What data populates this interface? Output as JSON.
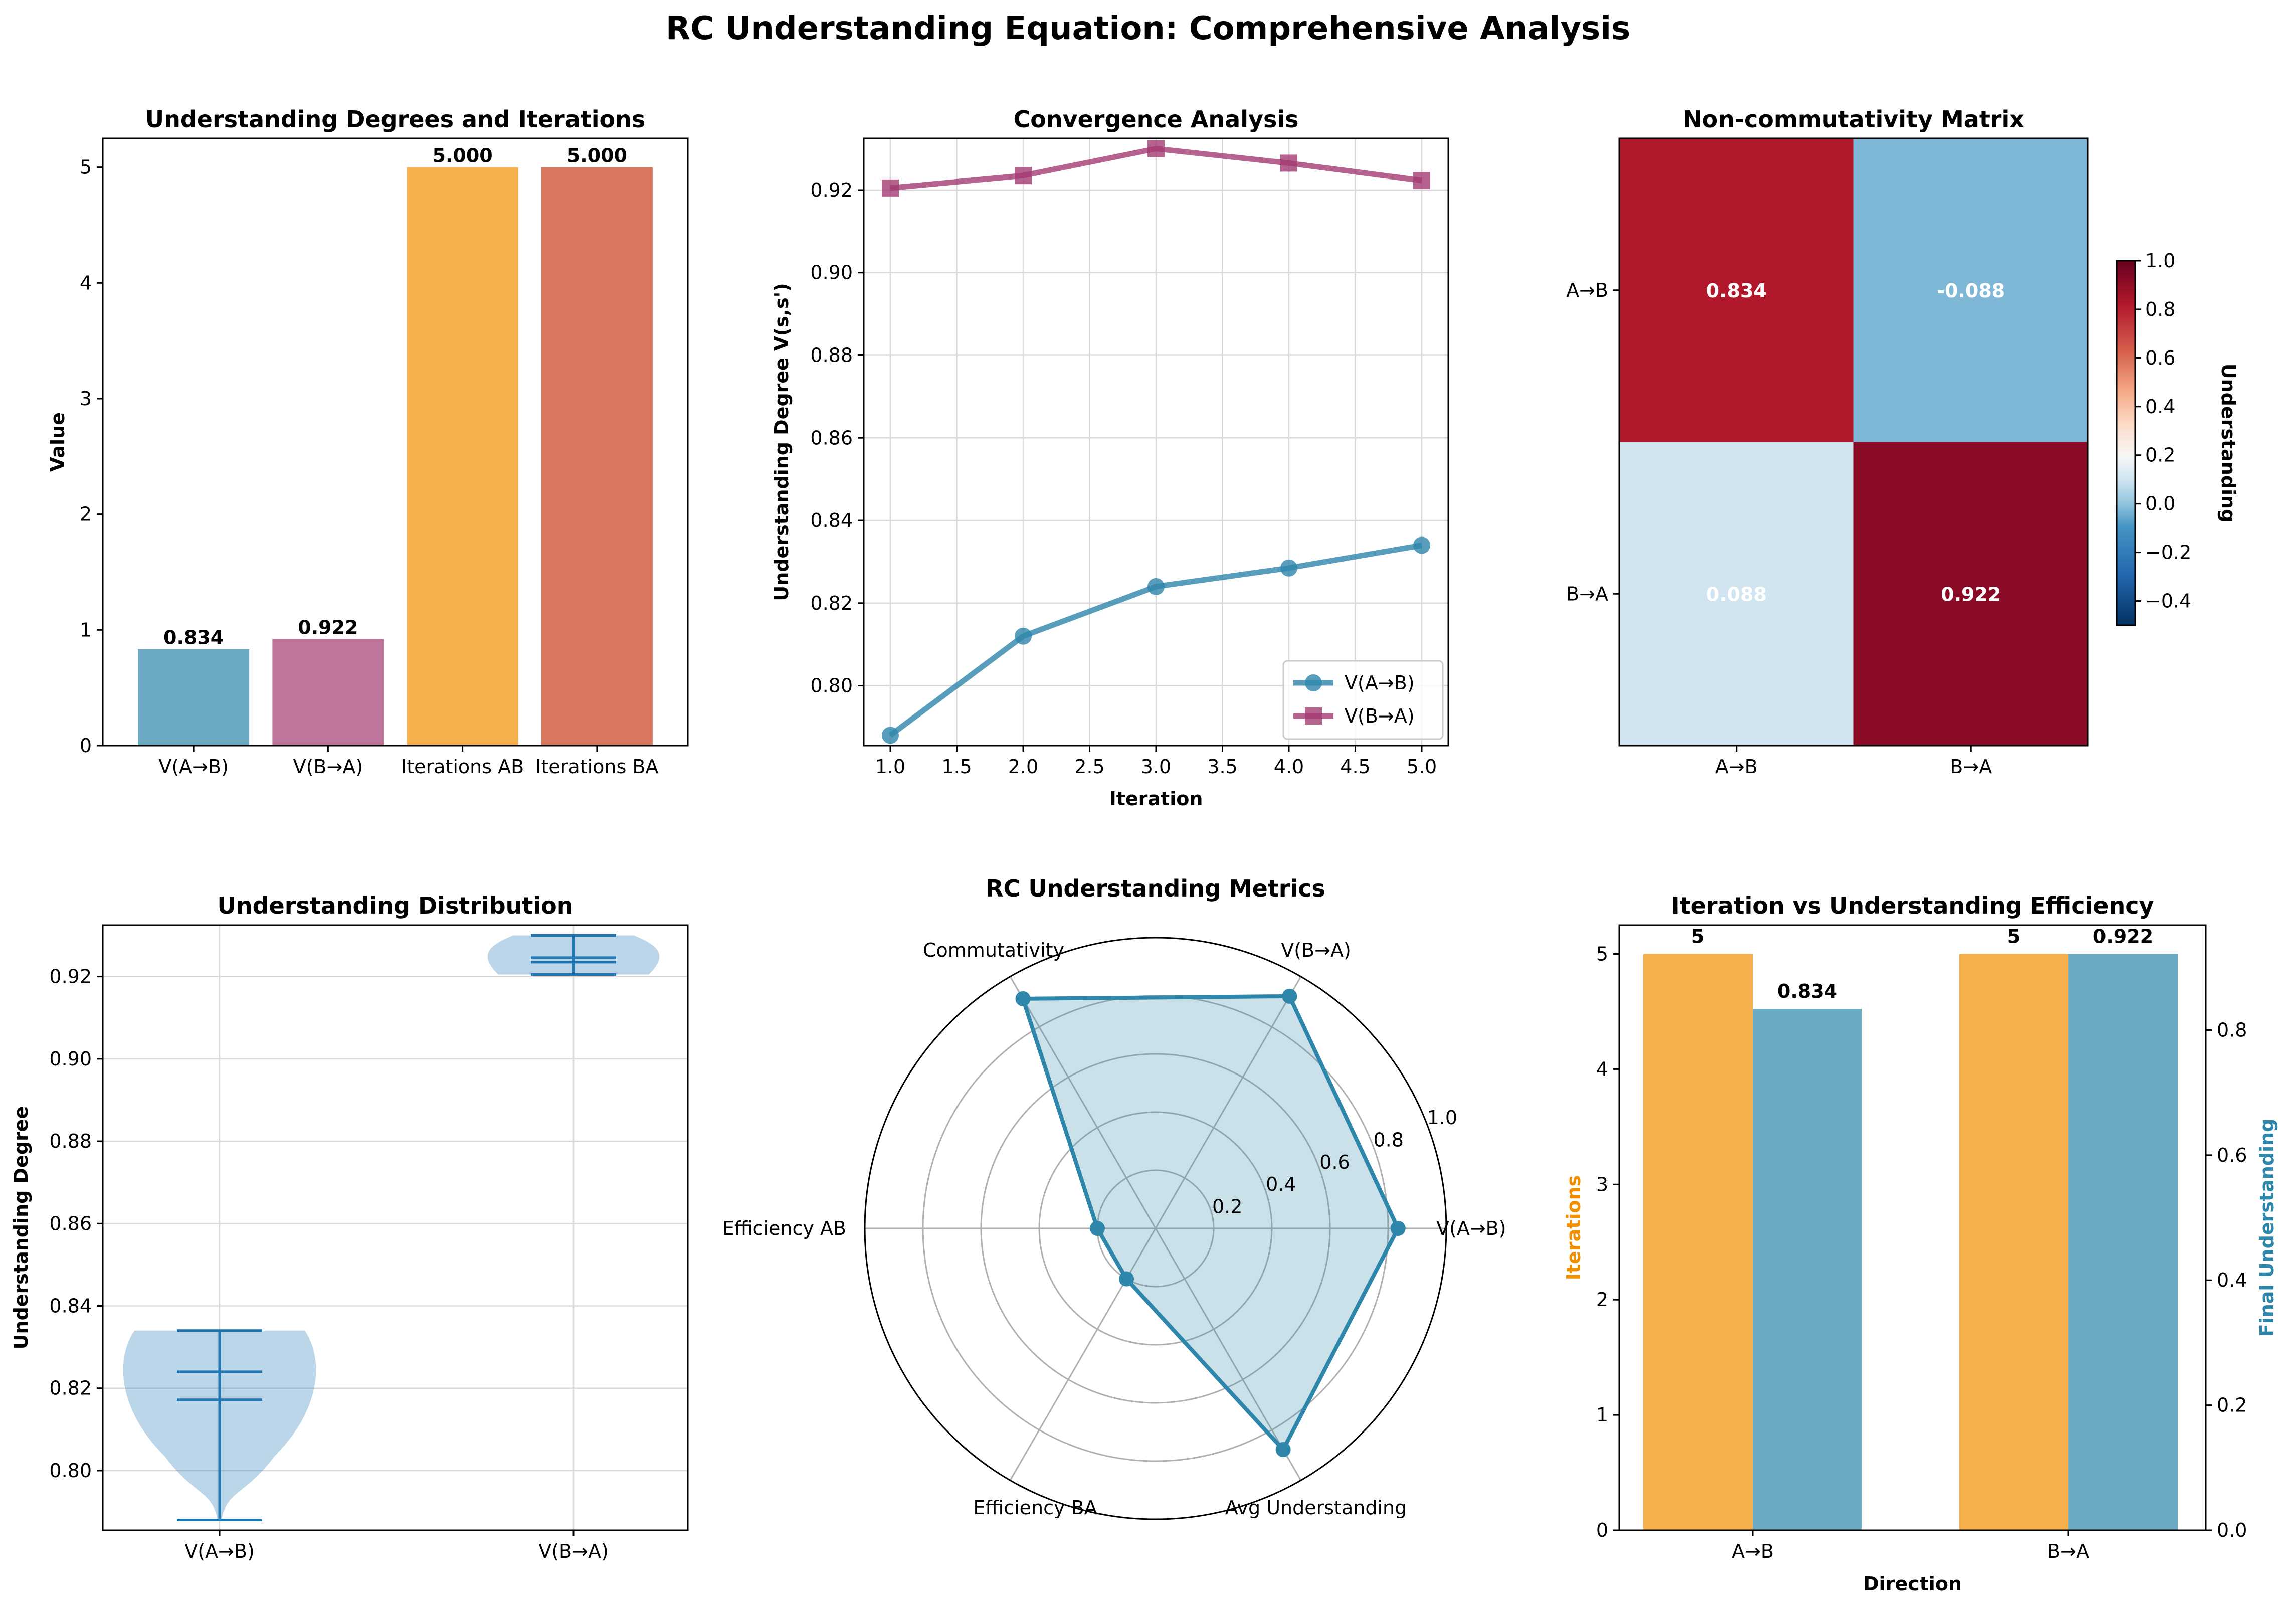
{
  "figure": {
    "suptitle": "RC Understanding Equation: Comprehensive Analysis"
  },
  "colors": {
    "ab_blue": "#2E86AB",
    "ba_magenta": "#A23B72",
    "orange": "#F18F01",
    "red": "#C73E1D",
    "violin": "#1f77b4"
  },
  "chart_data": [
    {
      "id": "bar",
      "type": "bar",
      "title": "Understanding Degrees and Iterations",
      "ylabel": "Value",
      "xlabel": "",
      "categories": [
        "V(A→B)",
        "V(B→A)",
        "Iterations AB",
        "Iterations BA"
      ],
      "values": [
        0.834,
        0.922,
        5,
        5
      ],
      "value_labels": [
        "0.834",
        "0.922",
        "5.000",
        "5.000"
      ],
      "colors": [
        "#2E86AB",
        "#A23B72",
        "#F18F01",
        "#C73E1D"
      ],
      "ylim": [
        0,
        5.25
      ],
      "yticks": [
        0,
        1,
        2,
        3,
        4,
        5
      ]
    },
    {
      "id": "line",
      "type": "line",
      "title": "Convergence Analysis",
      "xlabel": "Iteration",
      "ylabel": "Understanding Degree V(s,s')",
      "x": [
        1,
        2,
        3,
        4,
        5
      ],
      "series": [
        {
          "name": "V(A→B)",
          "values": [
            0.788,
            0.812,
            0.824,
            0.8285,
            0.834
          ],
          "color": "#2E86AB",
          "marker": "circle"
        },
        {
          "name": "V(B→A)",
          "values": [
            0.9205,
            0.9235,
            0.93,
            0.9265,
            0.9223
          ],
          "color": "#A23B72",
          "marker": "square"
        }
      ],
      "xlim": [
        0.8,
        5.2
      ],
      "ylim": [
        0.7855,
        0.9325
      ],
      "xticks": [
        1.0,
        1.5,
        2.0,
        2.5,
        3.0,
        3.5,
        4.0,
        4.5,
        5.0
      ],
      "yticks": [
        0.8,
        0.82,
        0.84,
        0.86,
        0.88,
        0.9,
        0.92
      ],
      "grid": true,
      "legend": "bottom-right"
    },
    {
      "id": "heatmap",
      "type": "heatmap",
      "title": "Non-commutativity Matrix",
      "rows": [
        "A→B",
        "B→A"
      ],
      "cols": [
        "A→B",
        "B→A"
      ],
      "values": [
        [
          0.834,
          -0.088
        ],
        [
          0.088,
          0.922
        ]
      ],
      "cell_labels": [
        [
          "0.834",
          "-0.088"
        ],
        [
          "0.088",
          "0.922"
        ]
      ],
      "colormap": "RdBu_r",
      "vmin": -0.5,
      "vmax": 1.0,
      "colorbar_label": "Understanding",
      "colorbar_ticks": [
        "1.0",
        "0.8",
        "0.6",
        "0.4",
        "0.2",
        "0.0",
        "−0.2",
        "−0.4"
      ]
    },
    {
      "id": "violin",
      "type": "violin",
      "title": "Understanding Distribution",
      "ylabel": "Understanding Degree",
      "categories": [
        "V(A→B)",
        "V(B→A)"
      ],
      "stats": [
        {
          "min": 0.788,
          "max": 0.834,
          "mean": 0.8172,
          "median": 0.824
        },
        {
          "min": 0.9205,
          "max": 0.93,
          "mean": 0.9246,
          "median": 0.9235
        }
      ],
      "ylim": [
        0.7855,
        0.9325
      ],
      "yticks": [
        0.8,
        0.82,
        0.84,
        0.86,
        0.88,
        0.9,
        0.92
      ],
      "grid": true
    },
    {
      "id": "radar",
      "type": "radar",
      "title": "RC Understanding Metrics",
      "axes": [
        "V(A→B)",
        "V(B→A)",
        "Commutativity",
        "Efficiency AB",
        "Efficiency BA",
        "Avg Understanding"
      ],
      "values": [
        0.834,
        0.922,
        0.912,
        0.2,
        0.2,
        0.878
      ],
      "rticks": [
        "0.2",
        "0.4",
        "0.6",
        "0.8",
        "1.0"
      ],
      "rmax": 1.0,
      "color": "#2E86AB"
    },
    {
      "id": "dualbar",
      "type": "bar",
      "title": "Iteration vs Understanding Efficiency",
      "xlabel": "Direction",
      "ylabel": "Iterations",
      "ylabel_right": "Final Understanding",
      "categories": [
        "A→B",
        "B→A"
      ],
      "series": [
        {
          "name": "Iterations",
          "values": [
            5,
            5
          ],
          "labels": [
            "5",
            "5"
          ],
          "color": "#F18F01"
        },
        {
          "name": "Final Understanding",
          "values": [
            0.834,
            0.922
          ],
          "labels": [
            "0.834",
            "0.922"
          ],
          "color": "#2E86AB"
        }
      ],
      "ylim_left": [
        0,
        5.25
      ],
      "ylim_right": [
        0,
        0.968
      ],
      "yticks_left": [
        0,
        1,
        2,
        3,
        4,
        5
      ],
      "yticks_right": [
        "0.0",
        "0.2",
        "0.4",
        "0.6",
        "0.8"
      ]
    }
  ]
}
